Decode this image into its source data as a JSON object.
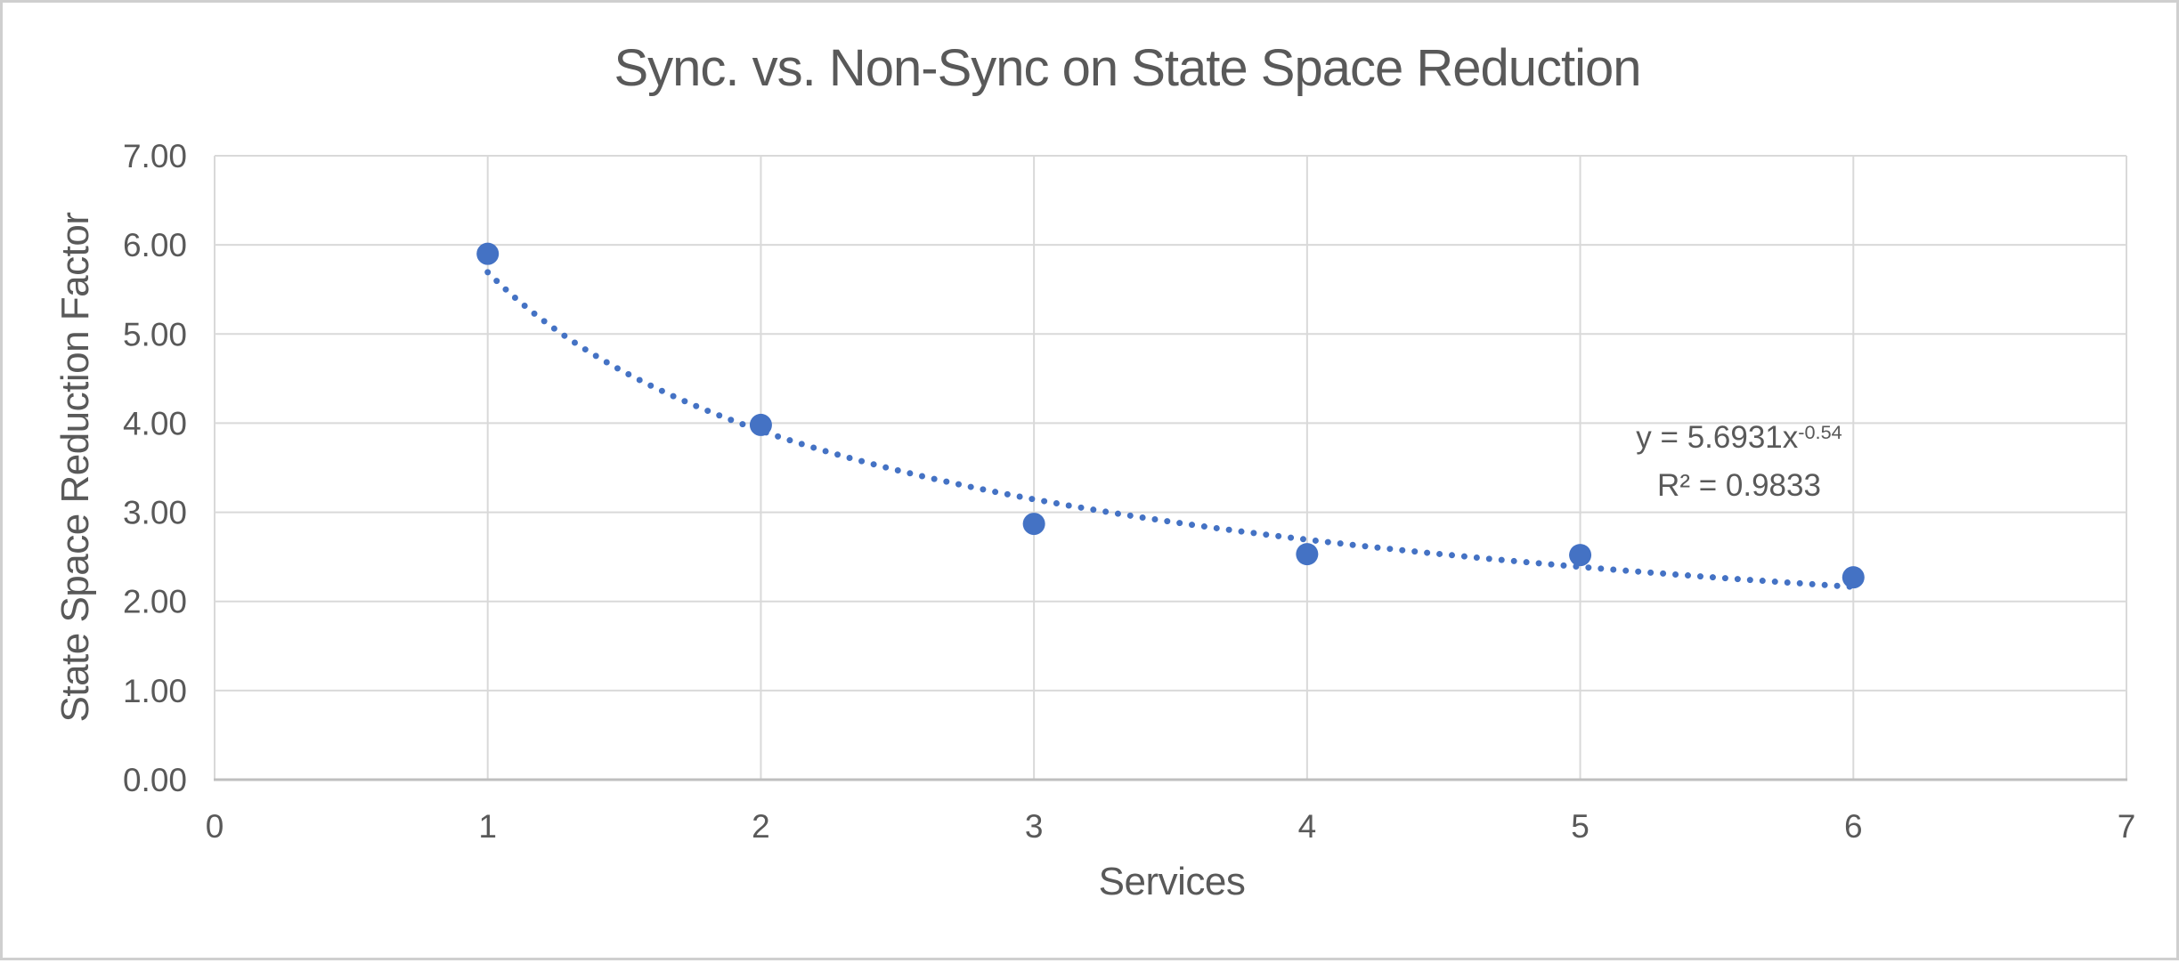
{
  "chart_data": {
    "type": "scatter",
    "title": "Sync. vs. Non-Sync on State Space Reduction",
    "xlabel": "Services",
    "ylabel": "State Space Reduction Factor",
    "x": [
      1,
      2,
      3,
      4,
      5,
      6
    ],
    "y": [
      5.9,
      3.98,
      2.87,
      2.53,
      2.52,
      2.27
    ],
    "xlim": [
      0,
      7
    ],
    "ylim": [
      0,
      7
    ],
    "x_tick_labels": [
      "0",
      "1",
      "2",
      "3",
      "4",
      "5",
      "6",
      "7"
    ],
    "y_tick_labels": [
      "0.00",
      "1.00",
      "2.00",
      "3.00",
      "4.00",
      "5.00",
      "6.00",
      "7.00"
    ],
    "grid": true,
    "legend": false,
    "trendline": {
      "type": "power",
      "coefficient": 5.6931,
      "exponent": -0.54,
      "x_start": 1,
      "x_end": 6,
      "style": "dotted"
    },
    "annotations": {
      "equation_base": "y = 5.6931x",
      "equation_exponent": "-0.54",
      "r_squared": "R² = 0.9833"
    },
    "colors": {
      "series": "#4472C4",
      "gridline": "#D9D9D9",
      "axis_line": "#BFBFBF",
      "text": "#595959",
      "border": "#CFCFCF",
      "background": "#FFFFFF"
    }
  }
}
